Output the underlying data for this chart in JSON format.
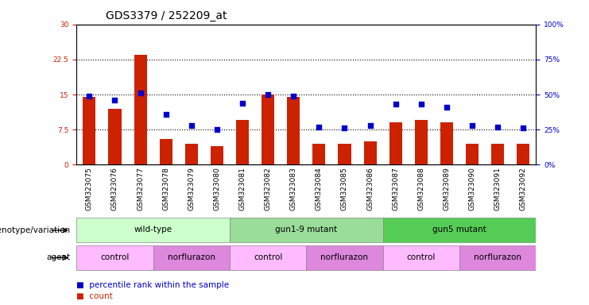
{
  "title": "GDS3379 / 252209_at",
  "samples": [
    "GSM323075",
    "GSM323076",
    "GSM323077",
    "GSM323078",
    "GSM323079",
    "GSM323080",
    "GSM323081",
    "GSM323082",
    "GSM323083",
    "GSM323084",
    "GSM323085",
    "GSM323086",
    "GSM323087",
    "GSM323088",
    "GSM323089",
    "GSM323090",
    "GSM323091",
    "GSM323092"
  ],
  "counts": [
    14.5,
    12.0,
    23.5,
    5.5,
    4.5,
    4.0,
    9.5,
    15.0,
    14.5,
    4.5,
    4.5,
    5.0,
    9.0,
    9.5,
    9.0,
    4.5,
    4.5,
    4.5
  ],
  "percentile_ranks": [
    49,
    46,
    51,
    36,
    28,
    25,
    44,
    50,
    49,
    27,
    26,
    28,
    43,
    43,
    41,
    28,
    27,
    26
  ],
  "left_ylim": [
    0,
    30
  ],
  "right_ylim": [
    0,
    100
  ],
  "left_yticks": [
    0,
    7.5,
    15,
    22.5,
    30
  ],
  "right_yticks": [
    0,
    25,
    50,
    75,
    100
  ],
  "left_ytick_labels": [
    "0",
    "7.5",
    "15",
    "22.5",
    "30"
  ],
  "right_ytick_labels": [
    "0%",
    "25%",
    "50%",
    "75%",
    "100%"
  ],
  "bar_color": "#cc2200",
  "scatter_color": "#0000cc",
  "plot_bg_color": "#ffffff",
  "xtick_bg_color": "#cccccc",
  "genotype_groups": [
    {
      "label": "wild-type",
      "start": 0,
      "end": 5,
      "color": "#ccffcc"
    },
    {
      "label": "gun1-9 mutant",
      "start": 6,
      "end": 11,
      "color": "#99dd99"
    },
    {
      "label": "gun5 mutant",
      "start": 12,
      "end": 17,
      "color": "#55cc55"
    }
  ],
  "agent_groups": [
    {
      "label": "control",
      "start": 0,
      "end": 2,
      "color": "#ffbbff"
    },
    {
      "label": "norflurazon",
      "start": 3,
      "end": 5,
      "color": "#dd88dd"
    },
    {
      "label": "control",
      "start": 6,
      "end": 8,
      "color": "#ffbbff"
    },
    {
      "label": "norflurazon",
      "start": 9,
      "end": 11,
      "color": "#dd88dd"
    },
    {
      "label": "control",
      "start": 12,
      "end": 14,
      "color": "#ffbbff"
    },
    {
      "label": "norflurazon",
      "start": 15,
      "end": 17,
      "color": "#dd88dd"
    }
  ],
  "legend_count_label": "count",
  "legend_percentile_label": "percentile rank within the sample",
  "xlabel_genotype": "genotype/variation",
  "xlabel_agent": "agent",
  "title_fontsize": 10,
  "tick_fontsize": 6.5,
  "label_fontsize": 7.5,
  "bar_width": 0.5
}
